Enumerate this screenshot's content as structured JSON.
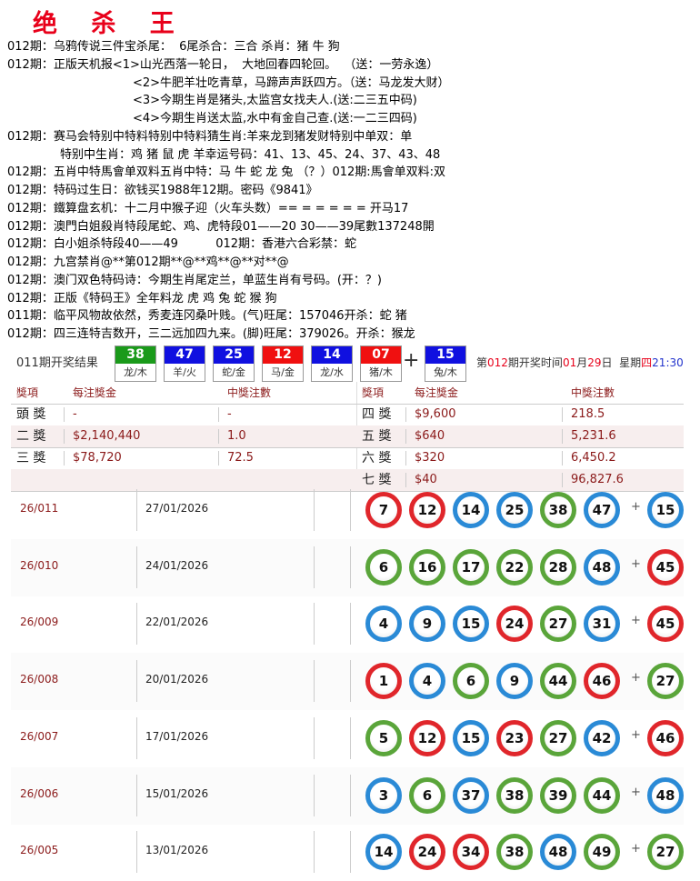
{
  "title": "绝 杀 王",
  "lines": [
    {
      "text": "012期：乌鸦传说三件宝杀尾：  6尾杀合：三合 杀肖：猪 牛 狗",
      "indent": 0
    },
    {
      "text": "012期：正版天机报<1>山光西落一轮日，  大地回春四轮回。  （送：一劳永逸）",
      "indent": 0
    },
    {
      "text": "<2>牛肥羊壮吃青草，马蹄声声跃四方。（送：马龙发大财）",
      "indent": 1
    },
    {
      "text": "<3>今期生肖是猪头,太监宫女找夫人.(送:二三五中码)",
      "indent": 1
    },
    {
      "text": "<4>今期生肖送太监,水中有金自己查.(送:一二三四码)",
      "indent": 1
    },
    {
      "text": "012期：赛马会特别中特料特别中特料猜生肖:羊来龙到猪发财特别中单双：单",
      "indent": 0
    },
    {
      "text": "特别中生肖：鸡 猪 鼠 虎 羊幸运号码：41、13、45、24、37、43、48",
      "indent": 2
    },
    {
      "text": "012期：五肖中特馬會单双料五肖中特：马 牛 蛇 龙 兔 （？）012期:馬會单双料:双",
      "indent": 0
    },
    {
      "text": "012期：特码过生日：欲钱买1988年12期。密码《9841》",
      "indent": 0
    },
    {
      "text": "012期：鐵算盘玄机：十二月中猴子迎（火车头数）== = = = = = 开马17",
      "indent": 0
    },
    {
      "text": "012期：澳門白姐殺肖特段尾蛇、鸡、虎特段01——20 30——39尾數137248開",
      "indent": 0
    },
    {
      "text": "012期：白小姐杀特段40——49          012期：香港六合彩禁：蛇",
      "indent": 0
    },
    {
      "text": "012期：九宫禁肖@**第012期**@**鸡**@**对**@",
      "indent": 0
    },
    {
      "text": "012期：澳门双色特码诗：今期生肖尾定兰，单蓝生肖有号码。(开：？)",
      "indent": 0
    },
    {
      "text": "012期：正版《特码王》全年料龙 虎 鸡 兔 蛇 猴 狗",
      "indent": 0
    },
    {
      "text": "011期：临平风物故依然，秀麦连冈桑叶贱。(气)旺尾：157046开杀：蛇 猪",
      "indent": 0
    },
    {
      "text": "012期：四三连特吉数开，三二远加四九来。(脚)旺尾：379026。开杀：猴龙",
      "indent": 0
    }
  ],
  "result": {
    "label": "011期开奖结果",
    "balls": [
      {
        "num": "38",
        "zodiac": "龙/木",
        "color": "#1a9a1a"
      },
      {
        "num": "47",
        "zodiac": "羊/火",
        "color": "#1010e0"
      },
      {
        "num": "25",
        "zodiac": "蛇/金",
        "color": "#1010e0"
      },
      {
        "num": "12",
        "zodiac": "马/金",
        "color": "#f01010"
      },
      {
        "num": "14",
        "zodiac": "龙/水",
        "color": "#1010e0"
      },
      {
        "num": "07",
        "zodiac": "猪/木",
        "color": "#f01010"
      }
    ],
    "plus": "+",
    "special": {
      "num": "15",
      "zodiac": "兔/木",
      "color": "#1010e0"
    },
    "next": {
      "p1": "第",
      "issue": "012",
      "p2": "期开奖时间",
      "month": "01",
      "p3": "月",
      "day": "29",
      "p4": "日  星期",
      "weekday": "四",
      "time": "21:30"
    }
  },
  "prize_table": {
    "headers": [
      "獎項",
      "每注獎金",
      "中獎注數"
    ],
    "left": [
      {
        "label": "頭 獎",
        "prize": "-",
        "count": "-"
      },
      {
        "label": "二 獎",
        "prize": "$2,140,440",
        "count": "1.0"
      },
      {
        "label": "三 獎",
        "prize": "$78,720",
        "count": "72.5"
      }
    ],
    "right": [
      {
        "label": "四 獎",
        "prize": "$9,600",
        "count": "218.5"
      },
      {
        "label": "五 獎",
        "prize": "$640",
        "count": "5,231.6"
      },
      {
        "label": "六 獎",
        "prize": "$320",
        "count": "6,450.2"
      },
      {
        "label": "七 獎",
        "prize": "$40",
        "count": "96,827.6"
      }
    ]
  },
  "history": [
    {
      "issue": "26/011",
      "date": "27/01/2026",
      "balls": [
        [
          "7",
          "r"
        ],
        [
          "12",
          "r"
        ],
        [
          "14",
          "b"
        ],
        [
          "25",
          "b"
        ],
        [
          "38",
          "g"
        ],
        [
          "47",
          "b"
        ]
      ],
      "special": [
        "15",
        "b"
      ]
    },
    {
      "issue": "26/010",
      "date": "24/01/2026",
      "balls": [
        [
          "6",
          "g"
        ],
        [
          "16",
          "g"
        ],
        [
          "17",
          "g"
        ],
        [
          "22",
          "g"
        ],
        [
          "28",
          "g"
        ],
        [
          "48",
          "b"
        ]
      ],
      "special": [
        "45",
        "r"
      ]
    },
    {
      "issue": "26/009",
      "date": "22/01/2026",
      "balls": [
        [
          "4",
          "b"
        ],
        [
          "9",
          "b"
        ],
        [
          "15",
          "b"
        ],
        [
          "24",
          "r"
        ],
        [
          "27",
          "g"
        ],
        [
          "31",
          "b"
        ]
      ],
      "special": [
        "45",
        "r"
      ]
    },
    {
      "issue": "26/008",
      "date": "20/01/2026",
      "balls": [
        [
          "1",
          "r"
        ],
        [
          "4",
          "b"
        ],
        [
          "6",
          "g"
        ],
        [
          "9",
          "b"
        ],
        [
          "44",
          "g"
        ],
        [
          "46",
          "r"
        ]
      ],
      "special": [
        "27",
        "g"
      ]
    },
    {
      "issue": "26/007",
      "date": "17/01/2026",
      "balls": [
        [
          "5",
          "g"
        ],
        [
          "12",
          "r"
        ],
        [
          "15",
          "b"
        ],
        [
          "23",
          "r"
        ],
        [
          "27",
          "g"
        ],
        [
          "42",
          "b"
        ]
      ],
      "special": [
        "46",
        "r"
      ]
    },
    {
      "issue": "26/006",
      "date": "15/01/2026",
      "balls": [
        [
          "3",
          "b"
        ],
        [
          "6",
          "g"
        ],
        [
          "37",
          "b"
        ],
        [
          "38",
          "g"
        ],
        [
          "39",
          "g"
        ],
        [
          "44",
          "g"
        ]
      ],
      "special": [
        "48",
        "b"
      ]
    },
    {
      "issue": "26/005",
      "date": "13/01/2026",
      "balls": [
        [
          "14",
          "b"
        ],
        [
          "24",
          "r"
        ],
        [
          "34",
          "r"
        ],
        [
          "38",
          "g"
        ],
        [
          "48",
          "b"
        ],
        [
          "49",
          "g"
        ]
      ],
      "special": [
        "27",
        "g"
      ]
    }
  ],
  "history_plus": "+"
}
